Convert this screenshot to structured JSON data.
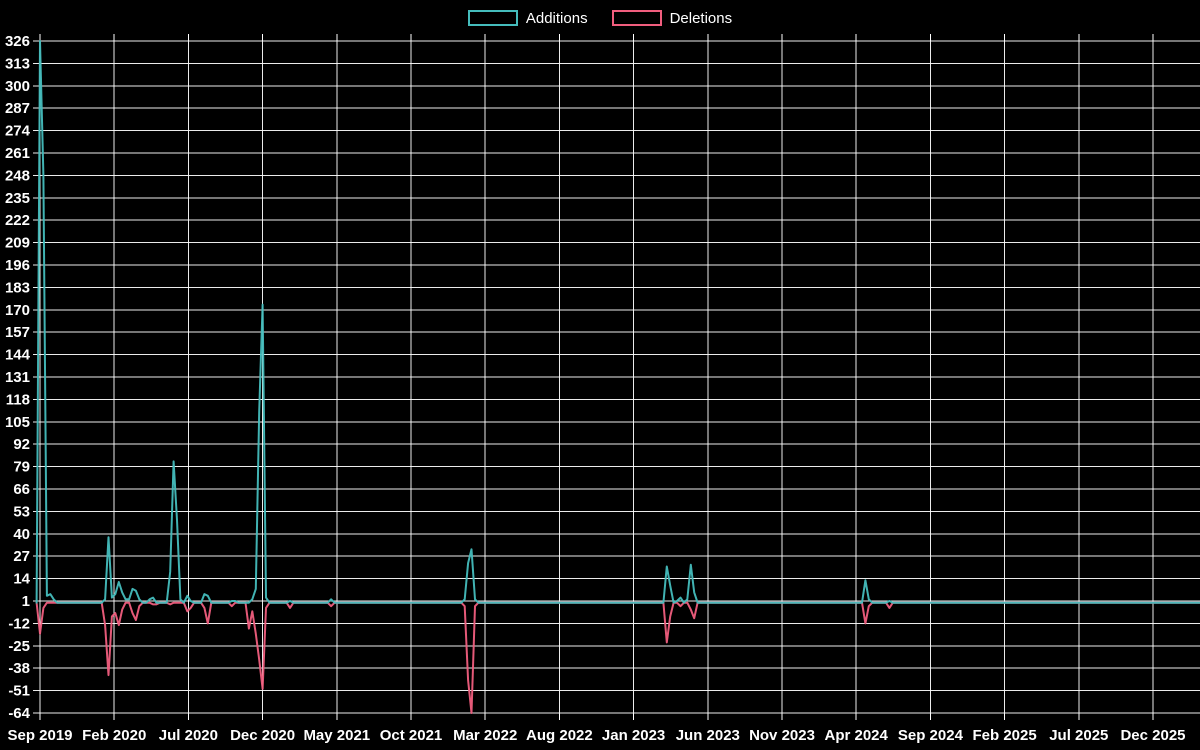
{
  "legend": {
    "items": [
      {
        "label": "Additions",
        "color": "#45bdbd"
      },
      {
        "label": "Deletions",
        "color": "#f15e7e"
      }
    ]
  },
  "chart_data": {
    "type": "line",
    "title": "",
    "xlabel": "",
    "ylabel": "",
    "background_color": "#000000",
    "grid_color": "#ffffff",
    "text_color": "#ffffff",
    "grid": true,
    "legend_position": "top-center",
    "y_axis": {
      "min": -64,
      "max": 326,
      "tick_step": 13,
      "ticks": [
        326,
        313,
        300,
        287,
        274,
        261,
        248,
        235,
        222,
        209,
        196,
        183,
        170,
        157,
        144,
        131,
        118,
        105,
        92,
        79,
        66,
        53,
        40,
        27,
        14,
        1,
        -12,
        -25,
        -38,
        -51,
        -64
      ]
    },
    "x_axis": {
      "unit": "week",
      "total_weeks": 340,
      "weeks_per_label": 21.67,
      "labels": [
        "Sep 2019",
        "Feb 2020",
        "Jul 2020",
        "Dec 2020",
        "May 2021",
        "Oct 2021",
        "Mar 2022",
        "Aug 2022",
        "Jan 2023",
        "Jun 2023",
        "Nov 2023",
        "Apr 2024",
        "Sep 2024",
        "Feb 2025",
        "Jul 2025",
        "Dec 2025"
      ]
    },
    "series": [
      {
        "name": "Additions",
        "color": "#45bdbd",
        "default_value": 0,
        "points": [
          [
            -1,
            0
          ],
          [
            0,
            326
          ],
          [
            1,
            248
          ],
          [
            2,
            4
          ],
          [
            3,
            5
          ],
          [
            4,
            2
          ],
          [
            19,
            2
          ],
          [
            20,
            38
          ],
          [
            21,
            3
          ],
          [
            22,
            5
          ],
          [
            23,
            12
          ],
          [
            24,
            6
          ],
          [
            25,
            2
          ],
          [
            26,
            2
          ],
          [
            27,
            8
          ],
          [
            28,
            7
          ],
          [
            29,
            2
          ],
          [
            32,
            2
          ],
          [
            33,
            3
          ],
          [
            38,
            18
          ],
          [
            39,
            82
          ],
          [
            40,
            48
          ],
          [
            41,
            2
          ],
          [
            43,
            4
          ],
          [
            44,
            1
          ],
          [
            48,
            5
          ],
          [
            49,
            4
          ],
          [
            56,
            1
          ],
          [
            57,
            1
          ],
          [
            62,
            2
          ],
          [
            63,
            8
          ],
          [
            64,
            111
          ],
          [
            65,
            173
          ],
          [
            66,
            3
          ],
          [
            73,
            1
          ],
          [
            85,
            2
          ],
          [
            124,
            2
          ],
          [
            125,
            23
          ],
          [
            126,
            31
          ],
          [
            127,
            2
          ],
          [
            183,
            21
          ],
          [
            184,
            10
          ],
          [
            186,
            1
          ],
          [
            187,
            3
          ],
          [
            189,
            2
          ],
          [
            190,
            22
          ],
          [
            191,
            6
          ],
          [
            241,
            13
          ],
          [
            242,
            2
          ],
          [
            248,
            1
          ]
        ]
      },
      {
        "name": "Deletions",
        "color": "#f15e7e",
        "default_value": 0,
        "points": [
          [
            -1,
            0
          ],
          [
            0,
            -18
          ],
          [
            1,
            -3
          ],
          [
            19,
            -13
          ],
          [
            20,
            -42
          ],
          [
            21,
            -8
          ],
          [
            22,
            -6
          ],
          [
            23,
            -13
          ],
          [
            24,
            -4
          ],
          [
            27,
            -6
          ],
          [
            28,
            -10
          ],
          [
            29,
            -2
          ],
          [
            33,
            -1
          ],
          [
            34,
            -1
          ],
          [
            38,
            -1
          ],
          [
            43,
            -5
          ],
          [
            44,
            -3
          ],
          [
            48,
            -3
          ],
          [
            49,
            -12
          ],
          [
            56,
            -2
          ],
          [
            61,
            -15
          ],
          [
            62,
            -5
          ],
          [
            63,
            -18
          ],
          [
            64,
            -33
          ],
          [
            65,
            -50
          ],
          [
            66,
            -3
          ],
          [
            73,
            -3
          ],
          [
            85,
            -2
          ],
          [
            124,
            -2
          ],
          [
            125,
            -45
          ],
          [
            126,
            -64
          ],
          [
            127,
            -2
          ],
          [
            183,
            -23
          ],
          [
            184,
            -8
          ],
          [
            187,
            -2
          ],
          [
            190,
            -4
          ],
          [
            191,
            -9
          ],
          [
            241,
            -12
          ],
          [
            242,
            -2
          ],
          [
            248,
            -3
          ]
        ]
      }
    ]
  }
}
